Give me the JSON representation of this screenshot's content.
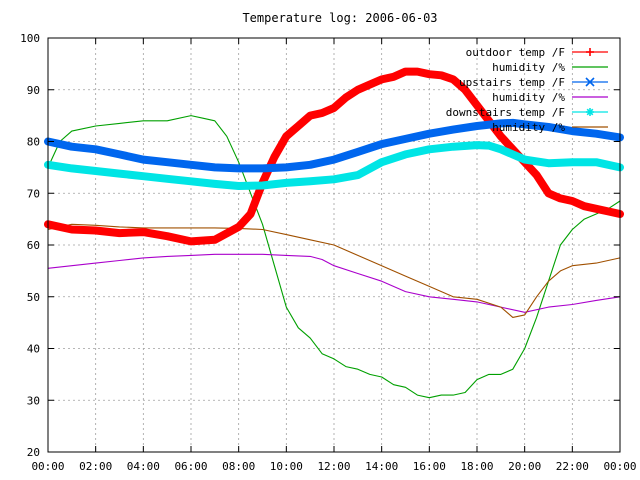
{
  "chart_data": {
    "type": "line",
    "title": "Temperature log: 2006-06-03",
    "xlabel": "",
    "ylabel": "",
    "x_ticks": [
      "00:00",
      "02:00",
      "04:00",
      "06:00",
      "08:00",
      "10:00",
      "12:00",
      "14:00",
      "16:00",
      "18:00",
      "20:00",
      "22:00",
      "00:00"
    ],
    "xlim": [
      0,
      24
    ],
    "ylim": [
      20,
      100
    ],
    "y_ticks": [
      20,
      30,
      40,
      50,
      60,
      70,
      80,
      90,
      100
    ],
    "grid": true,
    "legend_position": "top-right",
    "x_unit": "hours",
    "series": [
      {
        "name": "outdoor temp /F",
        "color": "#ff0000",
        "marker": "plus",
        "style": "thick",
        "x": [
          0,
          1,
          2,
          3,
          4,
          5,
          6,
          7,
          8,
          8.5,
          9,
          9.5,
          10,
          10.5,
          11,
          11.5,
          12,
          12.5,
          13,
          13.5,
          14,
          14.5,
          15,
          15.5,
          16,
          16.5,
          17,
          17.5,
          18,
          18.5,
          19,
          19.5,
          20,
          20.5,
          21,
          21.5,
          22,
          22.5,
          23,
          23.5,
          24
        ],
        "y": [
          64,
          63,
          62.8,
          62.3,
          62.5,
          61.7,
          60.7,
          61,
          63.5,
          66,
          72,
          77,
          81,
          83,
          85,
          85.5,
          86.5,
          88.5,
          90,
          91,
          92,
          92.5,
          93.5,
          93.5,
          93,
          92.8,
          92,
          90,
          87,
          84,
          81,
          78.5,
          76,
          73.5,
          70,
          69,
          68.5,
          67.5,
          67,
          66.5,
          66
        ]
      },
      {
        "name": "humidity /%",
        "color": "#00a000",
        "marker": "none",
        "style": "thin",
        "x": [
          0,
          0.5,
          1,
          2,
          3,
          4,
          5,
          6,
          6.5,
          7,
          7.5,
          8,
          8.5,
          9,
          9.5,
          10,
          10.5,
          11,
          11.5,
          12,
          12.5,
          13,
          13.5,
          14,
          14.5,
          15,
          15.5,
          16,
          16.5,
          17,
          17.5,
          18,
          18.5,
          19,
          19.5,
          20,
          20.5,
          21,
          21.5,
          22,
          22.5,
          23,
          23.5,
          24
        ],
        "y": [
          75,
          80,
          82,
          83,
          83.5,
          84,
          84,
          85,
          84.5,
          84,
          81,
          76,
          70,
          64,
          56,
          48,
          44,
          42,
          39,
          38,
          36.5,
          36,
          35,
          34.5,
          33,
          32.5,
          31,
          30.5,
          31,
          31,
          31.5,
          34,
          35,
          35,
          36,
          40,
          46,
          53,
          60,
          63,
          65,
          66,
          67,
          68.5
        ]
      },
      {
        "name": "upstairs temp /F",
        "color": "#0066ee",
        "marker": "x",
        "style": "thick",
        "x": [
          0,
          1,
          2,
          3,
          4,
          5,
          6,
          7,
          8,
          9,
          10,
          11,
          12,
          13,
          14,
          15,
          16,
          17,
          18,
          19,
          19.5,
          20,
          21,
          22,
          23,
          24
        ],
        "y": [
          80,
          79,
          78.5,
          77.5,
          76.5,
          76,
          75.5,
          75,
          74.8,
          74.8,
          75,
          75.5,
          76.5,
          78,
          79.5,
          80.5,
          81.5,
          82.3,
          83,
          83.5,
          83.6,
          83.3,
          82.8,
          82,
          81.5,
          80.8
        ]
      },
      {
        "name": "humidity /%",
        "color": "#aa00cc",
        "marker": "none",
        "style": "thin",
        "x": [
          0,
          1,
          2,
          3,
          4,
          5,
          6,
          7,
          8,
          9,
          10,
          11,
          11.5,
          12,
          13,
          14,
          15,
          16,
          17,
          18,
          19,
          20,
          21,
          22,
          23,
          24
        ],
        "y": [
          55.5,
          56,
          56.5,
          57,
          57.5,
          57.8,
          58,
          58.2,
          58.2,
          58.2,
          58,
          57.8,
          57.2,
          56,
          54.5,
          53,
          51,
          50,
          49.5,
          49,
          48,
          47,
          48,
          48.5,
          49.3,
          50
        ]
      },
      {
        "name": "downstairs temp /F",
        "color": "#00e5e5",
        "marker": "star",
        "style": "thick",
        "x": [
          0,
          1,
          2,
          3,
          4,
          5,
          6,
          7,
          8,
          9,
          10,
          11,
          12,
          13,
          14,
          15,
          16,
          17,
          18,
          18.5,
          19,
          20,
          21,
          22,
          23,
          24
        ],
        "y": [
          75.5,
          74.8,
          74.3,
          73.8,
          73.3,
          72.8,
          72.3,
          71.8,
          71.4,
          71.5,
          72,
          72.3,
          72.7,
          73.5,
          76,
          77.5,
          78.5,
          79,
          79.3,
          79.2,
          78.5,
          76.5,
          75.8,
          76,
          76,
          75
        ]
      },
      {
        "name": "humidity /%",
        "color": "#a05000",
        "marker": "none",
        "style": "thin",
        "x": [
          0,
          0.5,
          1,
          2,
          3,
          4,
          5,
          6,
          7,
          8,
          9,
          10,
          11,
          12,
          13,
          14,
          15,
          16,
          17,
          18,
          19,
          19.5,
          20,
          20.5,
          21,
          21.5,
          22,
          23,
          24
        ],
        "y": [
          63,
          63.5,
          64,
          63.8,
          63.5,
          63.3,
          63.3,
          63.3,
          63.3,
          63.2,
          63,
          62,
          61,
          60,
          58,
          56,
          54,
          52,
          50,
          49.5,
          48,
          46,
          46.5,
          50,
          53,
          55,
          56,
          56.5,
          57.5
        ]
      }
    ]
  }
}
